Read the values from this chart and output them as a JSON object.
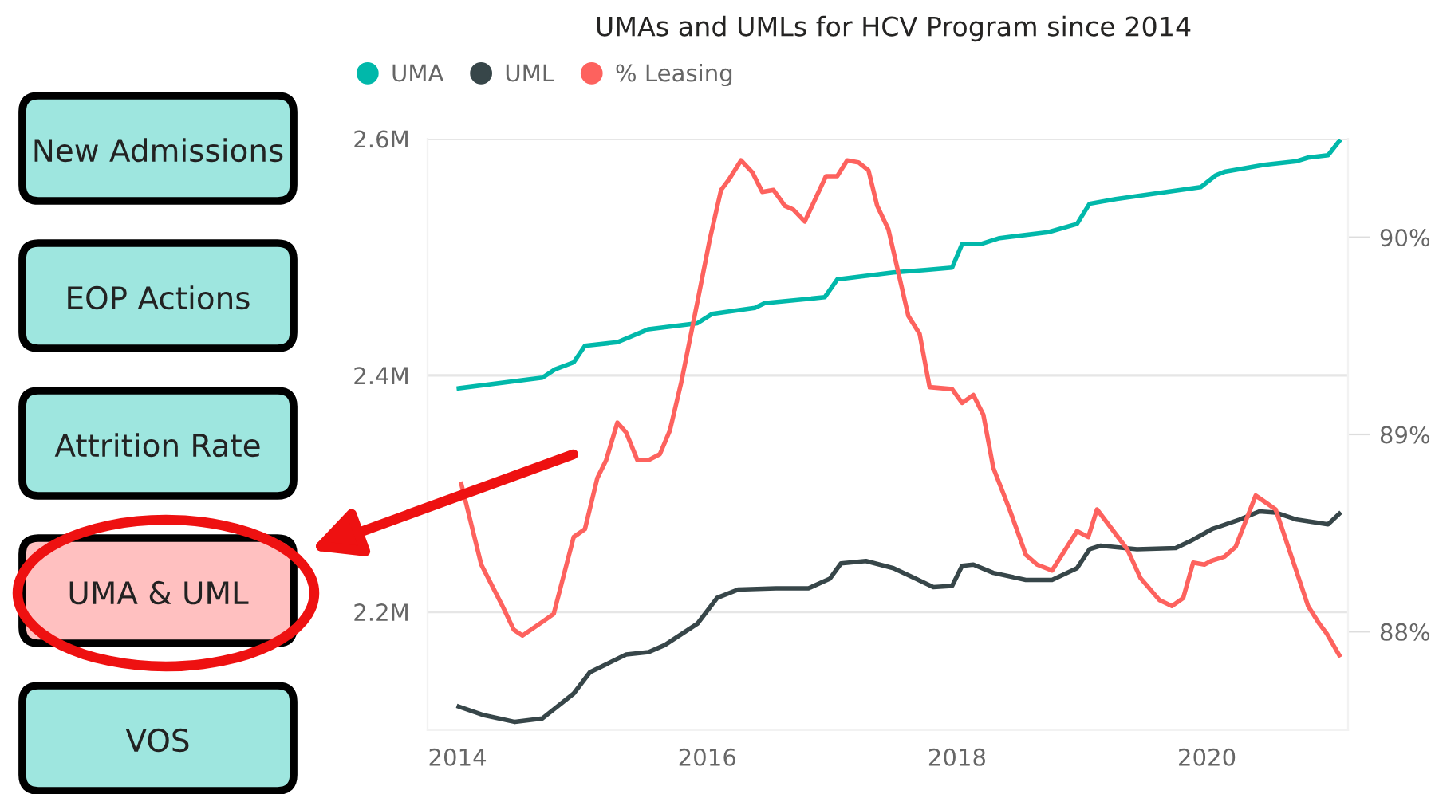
{
  "chart_data": [
    {
      "type": "other",
      "annotations": [
        "New Admissions",
        "EOP Actions",
        "Attrition Rate",
        "UMA & UML",
        "VOS"
      ],
      "colors": [
        "#9ee6df",
        "#9ee6df",
        "#9ee6df",
        "#ffc0c0",
        "#9ee6df"
      ]
    },
    {
      "type": "line",
      "title": "UMAs and UMLs for HCV Program since 2014",
      "legend": "top left",
      "grid": "y",
      "xlim": [
        2013.76,
        2021.13
      ],
      "xticks": [
        2014,
        2016,
        2018,
        2020
      ],
      "ylim": [
        2.1,
        2.6
      ],
      "yticks": [
        {
          "value": 2.2,
          "label": "2.2M"
        },
        {
          "value": 2.4,
          "label": "2.4M"
        },
        {
          "value": 2.6,
          "label": "2.6M"
        }
      ],
      "y2lim": [
        87.5,
        90.5
      ],
      "y2ticks": [
        {
          "value": 88,
          "label": "88%"
        },
        {
          "value": 89,
          "label": "89%"
        },
        {
          "value": 90,
          "label": "90%"
        }
      ],
      "series": [
        {
          "name": "UMA",
          "color": "#01b8aa",
          "x": [
            2014.01,
            2014.68,
            2014.78,
            2014.93,
            2015.02,
            2015.28,
            2015.53,
            2015.92,
            2016.04,
            2016.38,
            2016.46,
            2016.94,
            2017.04,
            2017.49,
            2017.74,
            2017.96,
            2018.04,
            2018.19,
            2018.34,
            2018.73,
            2018.96,
            2019.06,
            2019.27,
            2019.95,
            2020.07,
            2020.14,
            2020.46,
            2020.72,
            2020.81,
            2020.97,
            2021.06
          ],
          "values": [
            2.389,
            2.398,
            2.405,
            2.411,
            2.425,
            2.428,
            2.439,
            2.444,
            2.452,
            2.457,
            2.461,
            2.466,
            2.481,
            2.487,
            2.489,
            2.491,
            2.511,
            2.511,
            2.516,
            2.521,
            2.528,
            2.545,
            2.549,
            2.559,
            2.569,
            2.572,
            2.578,
            2.581,
            2.584,
            2.586,
            2.598
          ]
        },
        {
          "name": "UML",
          "color": "#374649",
          "x": [
            2014.01,
            2014.2,
            2014.46,
            2014.68,
            2014.93,
            2015.06,
            2015.35,
            2015.53,
            2015.66,
            2015.92,
            2016.08,
            2016.25,
            2016.55,
            2016.81,
            2016.98,
            2017.07,
            2017.27,
            2017.49,
            2017.65,
            2017.81,
            2017.96,
            2018.04,
            2018.13,
            2018.29,
            2018.55,
            2018.76,
            2018.96,
            2019.06,
            2019.15,
            2019.44,
            2019.75,
            2019.87,
            2020.04,
            2020.26,
            2020.42,
            2020.55,
            2020.72,
            2020.97,
            2021.06
          ],
          "values": [
            2.12,
            2.113,
            2.107,
            2.11,
            2.131,
            2.149,
            2.164,
            2.166,
            2.172,
            2.19,
            2.212,
            2.219,
            2.22,
            2.22,
            2.228,
            2.241,
            2.243,
            2.237,
            2.229,
            2.221,
            2.222,
            2.239,
            2.24,
            2.233,
            2.227,
            2.227,
            2.237,
            2.253,
            2.256,
            2.253,
            2.254,
            2.26,
            2.27,
            2.278,
            2.285,
            2.284,
            2.278,
            2.274,
            2.283
          ]
        },
        {
          "name": "% Leasing",
          "color": "#fd625e",
          "axis": "y2",
          "x": [
            2014.03,
            2014.19,
            2014.36,
            2014.45,
            2014.52,
            2014.68,
            2014.77,
            2014.93,
            2015.02,
            2015.12,
            2015.19,
            2015.28,
            2015.35,
            2015.44,
            2015.53,
            2015.62,
            2015.7,
            2015.79,
            2015.92,
            2016.02,
            2016.11,
            2016.17,
            2016.27,
            2016.36,
            2016.44,
            2016.53,
            2016.62,
            2016.69,
            2016.78,
            2016.95,
            2017.04,
            2017.12,
            2017.21,
            2017.29,
            2017.36,
            2017.45,
            2017.61,
            2017.7,
            2017.78,
            2017.96,
            2018.04,
            2018.13,
            2018.21,
            2018.29,
            2018.42,
            2018.55,
            2018.64,
            2018.76,
            2018.96,
            2019.05,
            2019.12,
            2019.36,
            2019.47,
            2019.62,
            2019.72,
            2019.81,
            2019.89,
            2019.98,
            2020.04,
            2020.14,
            2020.23,
            2020.39,
            2020.46,
            2020.55,
            2020.81,
            2020.9,
            2020.96,
            2021.06
          ],
          "values": [
            88.75,
            88.34,
            88.13,
            88.01,
            87.98,
            88.05,
            88.09,
            88.48,
            88.52,
            88.78,
            88.87,
            89.06,
            89.01,
            88.87,
            88.87,
            88.9,
            89.02,
            89.26,
            89.67,
            89.99,
            90.24,
            90.29,
            90.39,
            90.33,
            90.23,
            90.24,
            90.16,
            90.14,
            90.08,
            90.31,
            90.31,
            90.39,
            90.38,
            90.34,
            90.16,
            90.04,
            89.6,
            89.51,
            89.24,
            89.23,
            89.16,
            89.2,
            89.1,
            88.83,
            88.62,
            88.39,
            88.34,
            88.31,
            88.51,
            88.48,
            88.62,
            88.42,
            88.27,
            88.16,
            88.13,
            88.17,
            88.35,
            88.34,
            88.36,
            88.38,
            88.43,
            88.69,
            88.66,
            88.62,
            88.13,
            88.04,
            87.99,
            87.88
          ]
        }
      ]
    }
  ]
}
